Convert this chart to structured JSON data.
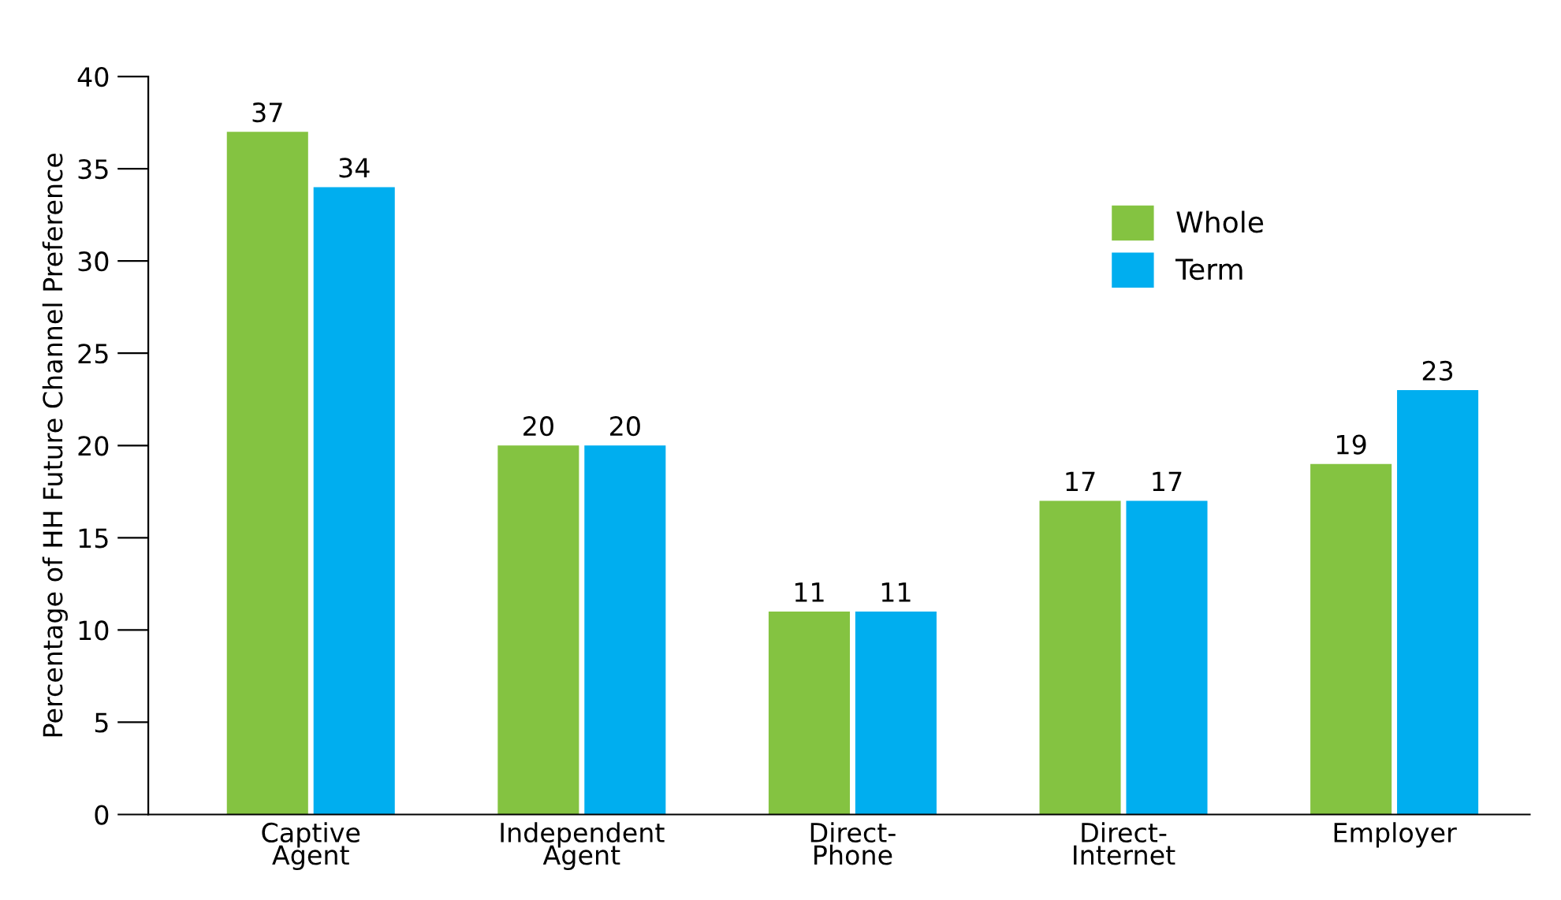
{
  "chart_data": {
    "type": "bar",
    "ylabel": "Percentage of HH Future Channel Preference",
    "categories": [
      "Captive\nAgent",
      "Independent\nAgent",
      "Direct-\nPhone",
      "Direct-\nInternet",
      "Employer"
    ],
    "series": [
      {
        "name": "Whole",
        "color": "#84c341",
        "values": [
          37,
          20,
          11,
          17,
          19
        ]
      },
      {
        "name": "Term",
        "color": "#00aeef",
        "values": [
          34,
          20,
          11,
          17,
          23
        ]
      }
    ],
    "ylim": [
      0,
      40
    ],
    "yticks": [
      0,
      5,
      10,
      15,
      20,
      25,
      30,
      35,
      40
    ],
    "data_labels": true,
    "legend": "top right",
    "grid": false
  }
}
